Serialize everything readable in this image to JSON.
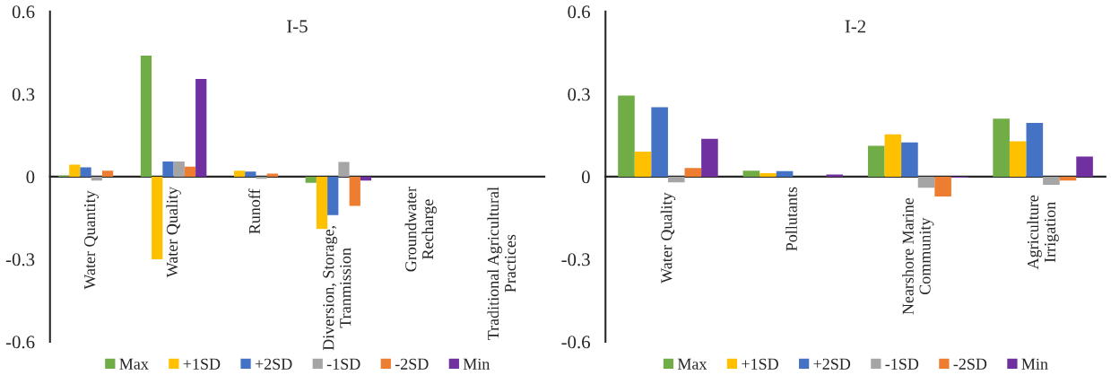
{
  "chart_data": [
    {
      "type": "bar",
      "title": "I-5",
      "categories": [
        "Water Quantity",
        "Water Quality",
        "Runoff",
        "Diversion, Storage,\nTranmission",
        "Groundwater\nRecharge",
        "Traditional Agricultural\nPractices"
      ],
      "series": [
        {
          "name": "Max",
          "color": "#70ad47",
          "values": [
            0.004,
            0.44,
            0,
            -0.022,
            0,
            0
          ]
        },
        {
          "name": "+1SD",
          "color": "#ffc000",
          "values": [
            0.044,
            -0.3,
            0.022,
            -0.19,
            0,
            0
          ]
        },
        {
          "name": "+2SD",
          "color": "#4472c4",
          "values": [
            0.034,
            0.055,
            0.018,
            -0.14,
            0,
            0
          ]
        },
        {
          "name": "-1SD",
          "color": "#a5a5a5",
          "values": [
            -0.014,
            0.055,
            -0.008,
            0.053,
            0,
            0
          ]
        },
        {
          "name": "-2SD",
          "color": "#ed7d31",
          "values": [
            0.022,
            0.036,
            0.011,
            -0.106,
            0,
            0
          ]
        },
        {
          "name": "Min",
          "color": "#7030a0",
          "values": [
            0,
            0.355,
            0,
            -0.014,
            0,
            0
          ]
        }
      ],
      "ylim": [
        -0.6,
        0.6
      ],
      "yticks": [
        -0.6,
        -0.3,
        0,
        0.3,
        0.6
      ],
      "legend": "bottom"
    },
    {
      "type": "bar",
      "title": "I-2",
      "categories": [
        "Water Quality",
        "Pollutants",
        "Nearshore Marine\nCommunity",
        "Agriculture\nIrrigation"
      ],
      "series": [
        {
          "name": "Max",
          "color": "#70ad47",
          "values": [
            0.295,
            0.022,
            0.112,
            0.211
          ]
        },
        {
          "name": "+1SD",
          "color": "#ffc000",
          "values": [
            0.091,
            0.013,
            0.154,
            0.128
          ]
        },
        {
          "name": "+2SD",
          "color": "#4472c4",
          "values": [
            0.252,
            0.02,
            0.124,
            0.195
          ]
        },
        {
          "name": "-1SD",
          "color": "#a5a5a5",
          "values": [
            -0.021,
            0,
            -0.04,
            -0.03
          ]
        },
        {
          "name": "-2SD",
          "color": "#ed7d31",
          "values": [
            0.031,
            0,
            -0.072,
            -0.014
          ]
        },
        {
          "name": "Min",
          "color": "#7030a0",
          "values": [
            0.137,
            0.008,
            -0.004,
            0.073
          ]
        }
      ],
      "ylim": [
        -0.6,
        0.6
      ],
      "yticks": [
        -0.6,
        -0.3,
        0,
        0.3,
        0.6
      ],
      "legend": "bottom"
    }
  ]
}
